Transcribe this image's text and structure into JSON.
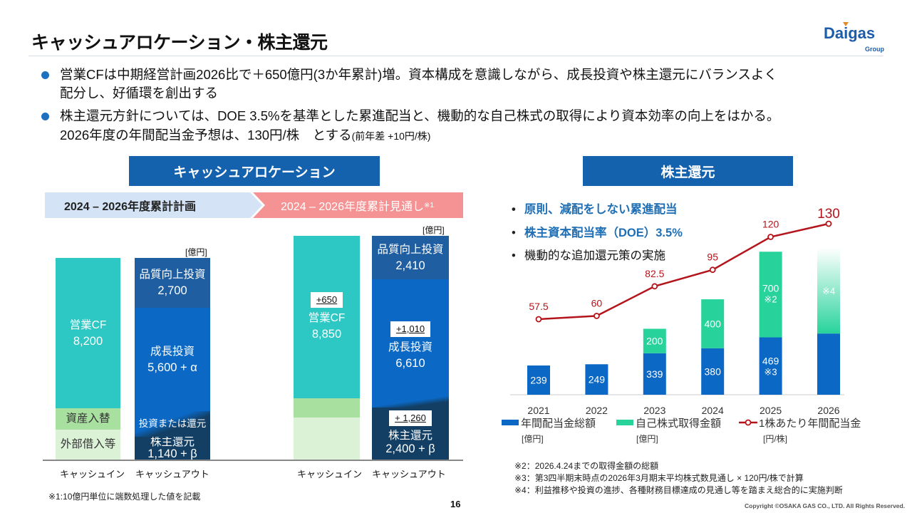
{
  "header": {
    "title": "キャッシュアロケーション・株主還元",
    "logo": "Daigas",
    "logo_sub": "Group"
  },
  "bullets": [
    {
      "line1": "営業CFは中期経営計画2026比で＋650億円(3か年累計)増。資本構成を意識しながら、成長投資や株主還元にバランスよく",
      "line2": "配分し、好循環を創出する"
    },
    {
      "line1": "株主還元方針については、DOE 3.5%を基準とした累進配当と、機動的な自己株式の取得により資本効率の向上をはかる。",
      "line2": "2026年度の年間配当金予想は、130円/株　とする",
      "line2_small": "(前年差 +10円/株)"
    }
  ],
  "colors": {
    "accent": "#1462ad",
    "teal": "#2ec8c4",
    "green_light": "#a8e0a0",
    "green_pale": "#dcf2d6",
    "blue_dark": "#1f5ea0",
    "blue": "#0b68c4",
    "navy": "#123f63",
    "red": "#b4141b",
    "buyback": "#27d39b"
  },
  "allocation": {
    "title": "キャッシュアロケーション",
    "plan_label": "2024 – 2026年度累計計画",
    "outlook_label": "2024 – 2026年度累計見通し",
    "outlook_note": "※1",
    "unit": "[億円]",
    "cash_in_label": "キャッシュイン",
    "cash_out_label": "キャッシュアウト",
    "plan": {
      "op_cf_label": "営業CF",
      "op_cf": "8,200",
      "asset_label": "資産入替",
      "borrow_label": "外部借入等",
      "quality_label": "品質向上投資",
      "quality": "2,700",
      "growth_label": "成長投資",
      "growth": "5,600 + α",
      "either_label": "投資または還元",
      "return_label": "株主還元",
      "return": "1,140 + β"
    },
    "outlook": {
      "op_cf_delta": "+650",
      "op_cf_label": "営業CF",
      "op_cf": "8,850",
      "quality_label": "品質向上投資",
      "quality": "2,410",
      "growth_delta": "+1,010",
      "growth_label": "成長投資",
      "growth": "6,610",
      "return_delta": "+ 1,260",
      "return_label": "株主還元",
      "return": "2,400 + β"
    },
    "footnote": "※1:10億円単位に端数処理した値を記載"
  },
  "returns": {
    "title": "株主還元",
    "points": [
      "原則、減配をしない累進配当",
      "株主資本配当率（DOE）3.5%",
      "機動的な追加還元策の実施"
    ]
  },
  "chart_data": {
    "type": "bar",
    "categories": [
      "2021",
      "2022",
      "2023",
      "2024",
      "2025",
      "2026"
    ],
    "series": [
      {
        "name": "年間配当金総額",
        "unit": "[億円]",
        "type": "bar",
        "stack": true,
        "values": [
          239,
          249,
          339,
          380,
          469,
          500
        ],
        "labels": [
          "239",
          "249",
          "339",
          "380",
          "469",
          ""
        ],
        "notes": [
          "",
          "",
          "",
          "",
          "※3",
          ""
        ],
        "color": "#0b68c4"
      },
      {
        "name": "自己株式取得金額",
        "unit": "[億円]",
        "type": "bar",
        "stack": true,
        "values": [
          0,
          0,
          200,
          400,
          700,
          700
        ],
        "labels": [
          "",
          "",
          "200",
          "400",
          "700",
          ""
        ],
        "notes": [
          "",
          "",
          "",
          "",
          "※2",
          "※4"
        ],
        "color": "#27d39b"
      },
      {
        "name": "1株あたり年間配当金",
        "unit": "[円/株]",
        "type": "line",
        "values": [
          57.5,
          60,
          82.5,
          95,
          120,
          130
        ],
        "labels": [
          "57.5",
          "60",
          "82.5",
          "95",
          "120",
          "130"
        ],
        "color": "#b4141b"
      }
    ],
    "grid": false,
    "legend": "bottom"
  },
  "footnotes": [
    "※2：2026.4.24までの取得金額の総額",
    "※3：第3四半期末時点の2026年3月期末平均株式数見通し × 120円/株で計算",
    "※4：利益推移や投資の進捗、各種財務目標達成の見通し等を踏まえ総合的に実施判断"
  ],
  "page_number": "16",
  "copyright": "Copyright ©OSAKA GAS CO., LTD. All Rights Reserved."
}
